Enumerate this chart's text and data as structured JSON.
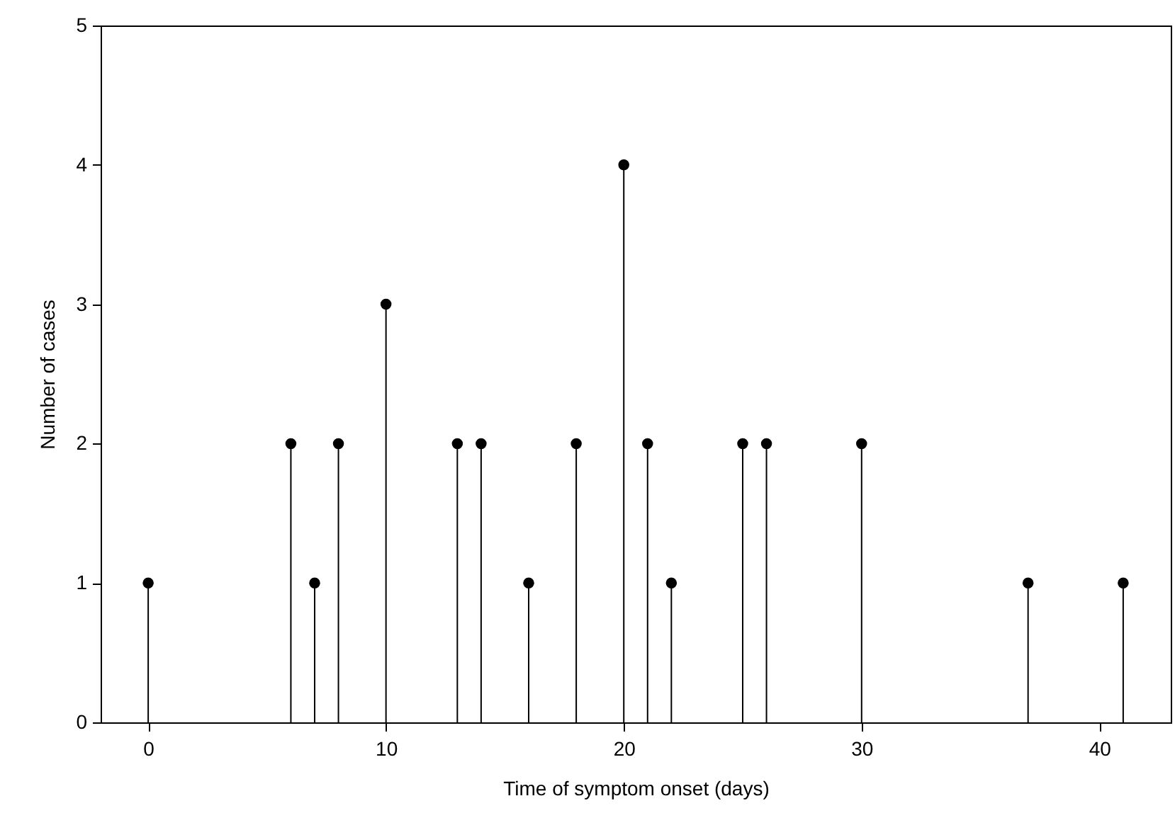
{
  "chart_data": {
    "type": "lollipop",
    "xlabel": "Time of symptom onset (days)",
    "ylabel": "Number of cases",
    "x": [
      0,
      6,
      7,
      8,
      10,
      13,
      14,
      16,
      18,
      20,
      21,
      22,
      25,
      26,
      30,
      37,
      41
    ],
    "values": [
      1,
      2,
      1,
      2,
      3,
      2,
      2,
      1,
      2,
      4,
      2,
      1,
      2,
      2,
      2,
      1,
      1
    ],
    "color": "#000000",
    "marker": "circle",
    "xlim": [
      -2,
      43
    ],
    "xticks": [
      0,
      10,
      20,
      30,
      40
    ],
    "ylim": [
      0,
      5
    ],
    "yticks": [
      0,
      1,
      2,
      3,
      4,
      5
    ]
  }
}
